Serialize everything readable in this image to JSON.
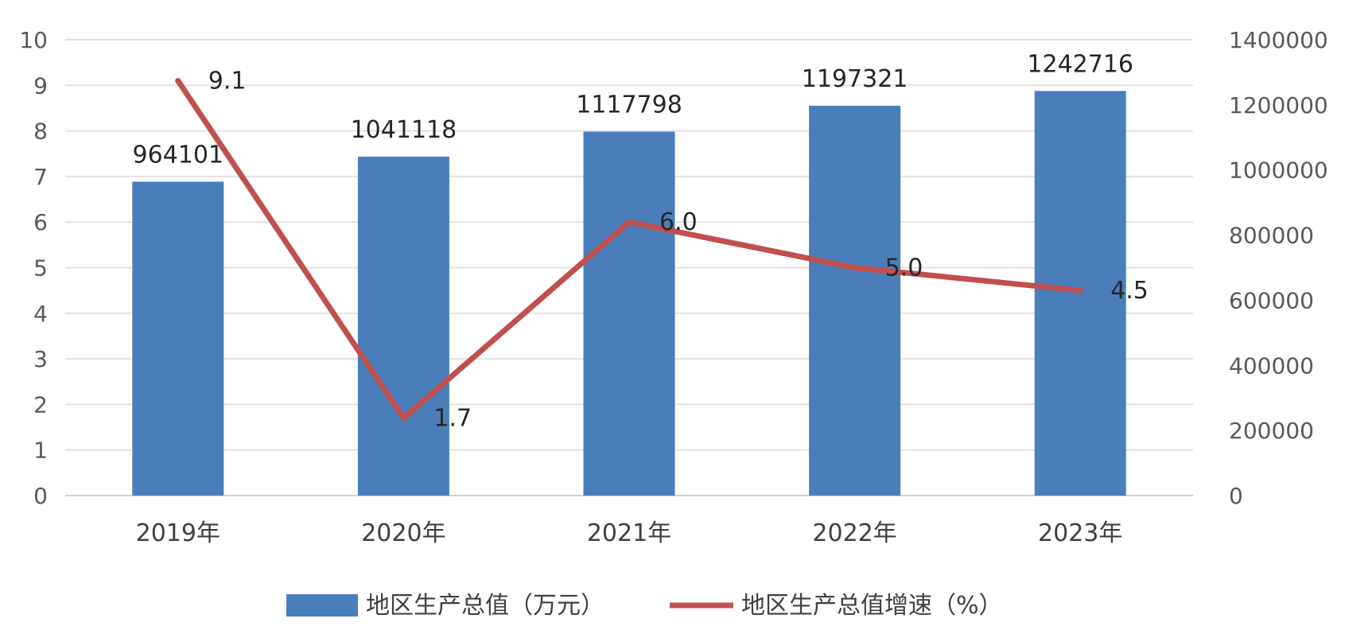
{
  "chart_data": {
    "type": "bar+line",
    "categories": [
      "2019年",
      "2020年",
      "2021年",
      "2022年",
      "2023年"
    ],
    "series": [
      {
        "name": "地区生产总值（万元）",
        "type": "bar",
        "axis": "right",
        "values": [
          964101,
          1041118,
          1117798,
          1197321,
          1242716
        ],
        "labels": [
          "964101",
          "1041118",
          "1117798",
          "1197321",
          "1242716"
        ],
        "color": "#4a7ebb"
      },
      {
        "name": "地区生产总值增速（%）",
        "type": "line",
        "axis": "left",
        "values": [
          9.1,
          1.7,
          6.0,
          5.0,
          4.5
        ],
        "labels": [
          "9.1",
          "1.7",
          "6.0",
          "5.0",
          "4.5"
        ],
        "color": "#c0504d"
      }
    ],
    "y_left": {
      "min": 0,
      "max": 10,
      "ticks": [
        "0",
        "1",
        "2",
        "3",
        "4",
        "5",
        "6",
        "7",
        "8",
        "9",
        "10"
      ]
    },
    "y_right": {
      "min": 0,
      "max": 1400000,
      "ticks": [
        "0",
        "200000",
        "400000",
        "600000",
        "800000",
        "1000000",
        "1200000",
        "1400000"
      ]
    },
    "grid": true,
    "legend_position": "bottom"
  }
}
